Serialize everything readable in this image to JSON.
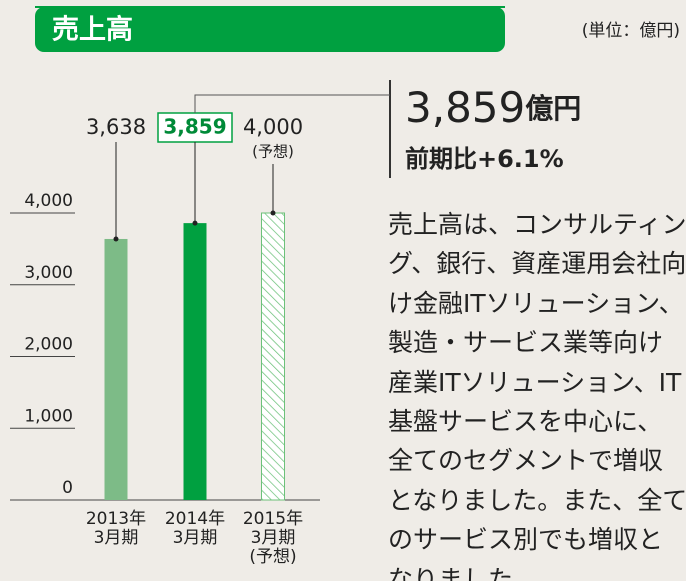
{
  "unit": "(単位：億円)",
  "headline": {
    "value": "3,859",
    "unit": "億円",
    "change": "前期比+6.1%"
  },
  "description": [
    "売上高は、コンサルティン",
    "グ、銀行、資産運用会社向",
    "け金融ITソリューション、",
    "製造・サービス業等向け",
    "産業ITソリューション、IT",
    "基盤サービスを中心に、",
    "全てのセグメントで増収",
    "となりました。また、全て",
    "のサービス別でも増収と",
    "なりました。"
  ],
  "chart_data": {
    "type": "bar",
    "title": "売上高",
    "categories": [
      "2013年\n3月期",
      "2014年\n3月期",
      "2015年\n3月期\n(予想)"
    ],
    "values": [
      3638,
      3859,
      4000
    ],
    "value_labels": [
      "3,638",
      "3,859",
      "4,000"
    ],
    "value_note": "(予想)",
    "colors": [
      "#7dbb87",
      "#00a040",
      "#6cc17a"
    ],
    "hatched": [
      false,
      false,
      true
    ],
    "highlight": 1,
    "ylim": [
      0,
      4000
    ],
    "yticks": [
      0,
      {
        "value": 1000,
        "label": "1,000"
      },
      {
        "value": 2000,
        "label": "2,000"
      },
      {
        "value": 3000,
        "label": "3,000"
      },
      {
        "value": 4000,
        "label": "4,000"
      }
    ]
  }
}
